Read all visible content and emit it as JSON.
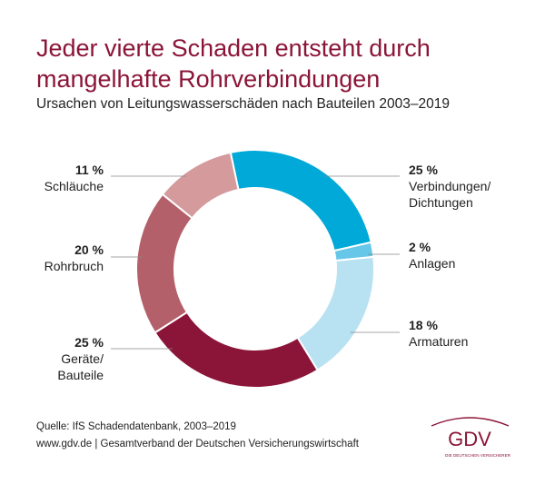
{
  "header": {
    "title": "Jeder vierte Schaden entsteht durch mangelhafte Rohrverbindungen",
    "subtitle": "Ursachen von Leitungswasserschäden nach Bauteilen 2003–2019"
  },
  "chart_data": {
    "type": "pie",
    "donut": true,
    "unit": "%",
    "segments": [
      {
        "label": "Verbindungen/ Dichtungen",
        "value": 25,
        "value_label": "25 %",
        "color": "#00a9d7"
      },
      {
        "label": "Anlagen",
        "value": 2,
        "value_label": "2 %",
        "color": "#66c7e8"
      },
      {
        "label": "Armaturen",
        "value": 18,
        "value_label": "18 %",
        "color": "#b8e1f2"
      },
      {
        "label": "Geräte/ Bauteile",
        "value": 25,
        "value_label": "25 %",
        "color": "#8b1538"
      },
      {
        "label": "Rohrbruch",
        "value": 20,
        "value_label": "20 %",
        "color": "#b3606a"
      },
      {
        "label": "Schläuche",
        "value": 11,
        "value_label": "11 %",
        "color": "#d49a9c"
      }
    ]
  },
  "footer": {
    "source": "Quelle: IfS Schadendatenbank, 2003–2019",
    "credit": "www.gdv.de | Gesamtverband der Deutschen Versicherungswirtschaft"
  },
  "logo": {
    "text": "GDV",
    "tagline": "DIE DEUTSCHEN VERSICHERER",
    "color": "#8b1538"
  }
}
